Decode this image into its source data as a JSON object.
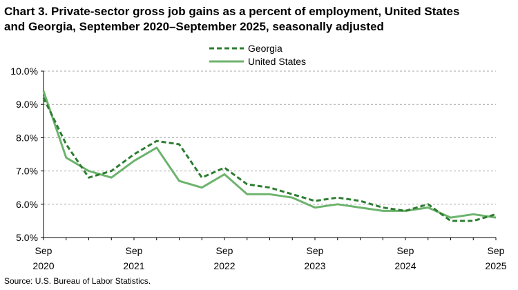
{
  "title_line1": "Chart 3. Private-sector gross job gains as a percent of employment, United States",
  "title_line2": "and Georgia, September 2020–September 2025, seasonally adjusted",
  "source": "Source: U.S. Bureau of Labor Statistics.",
  "chart_data": {
    "type": "line",
    "x": [
      "Sep 2020",
      "Dec 2020",
      "Mar 2021",
      "Jun 2021",
      "Sep 2021",
      "Dec 2021",
      "Mar 2022",
      "Jun 2022",
      "Sep 2022",
      "Dec 2022",
      "Mar 2023",
      "Jun 2023",
      "Sep 2023",
      "Dec 2023",
      "Mar 2024",
      "Jun 2024",
      "Sep 2024",
      "Dec 2024",
      "Mar 2025",
      "Jun 2025",
      "Sep 2025"
    ],
    "x_tick_labels": [
      {
        "index": 0,
        "line1": "Sep",
        "line2": "2020"
      },
      {
        "index": 4,
        "line1": "Sep",
        "line2": "2021"
      },
      {
        "index": 8,
        "line1": "Sep",
        "line2": "2022"
      },
      {
        "index": 12,
        "line1": "Sep",
        "line2": "2023"
      },
      {
        "index": 16,
        "line1": "Sep",
        "line2": "2024"
      },
      {
        "index": 20,
        "line1": "Sep",
        "line2": "2025"
      }
    ],
    "y_tick_labels": [
      "5.0%",
      "6.0%",
      "7.0%",
      "8.0%",
      "9.0%",
      "10.0%"
    ],
    "y_ticks": [
      5,
      6,
      7,
      8,
      9,
      10
    ],
    "ylim": [
      5,
      10
    ],
    "grid": true,
    "legend_position": "top-center",
    "series": [
      {
        "name": "Georgia",
        "style": "dashed",
        "color": "#2e7d32",
        "values": [
          9.2,
          7.8,
          6.8,
          7.0,
          7.5,
          7.9,
          7.8,
          6.8,
          7.1,
          6.6,
          6.5,
          6.3,
          6.1,
          6.2,
          6.1,
          5.9,
          5.8,
          6.0,
          5.5,
          5.5,
          5.7
        ]
      },
      {
        "name": "United States",
        "style": "solid",
        "color": "#6db36d",
        "values": [
          9.4,
          7.4,
          7.0,
          6.8,
          7.3,
          7.7,
          6.7,
          6.5,
          6.9,
          6.3,
          6.3,
          6.2,
          5.9,
          6.0,
          5.9,
          5.8,
          5.8,
          5.9,
          5.6,
          5.7,
          5.6
        ]
      }
    ]
  }
}
